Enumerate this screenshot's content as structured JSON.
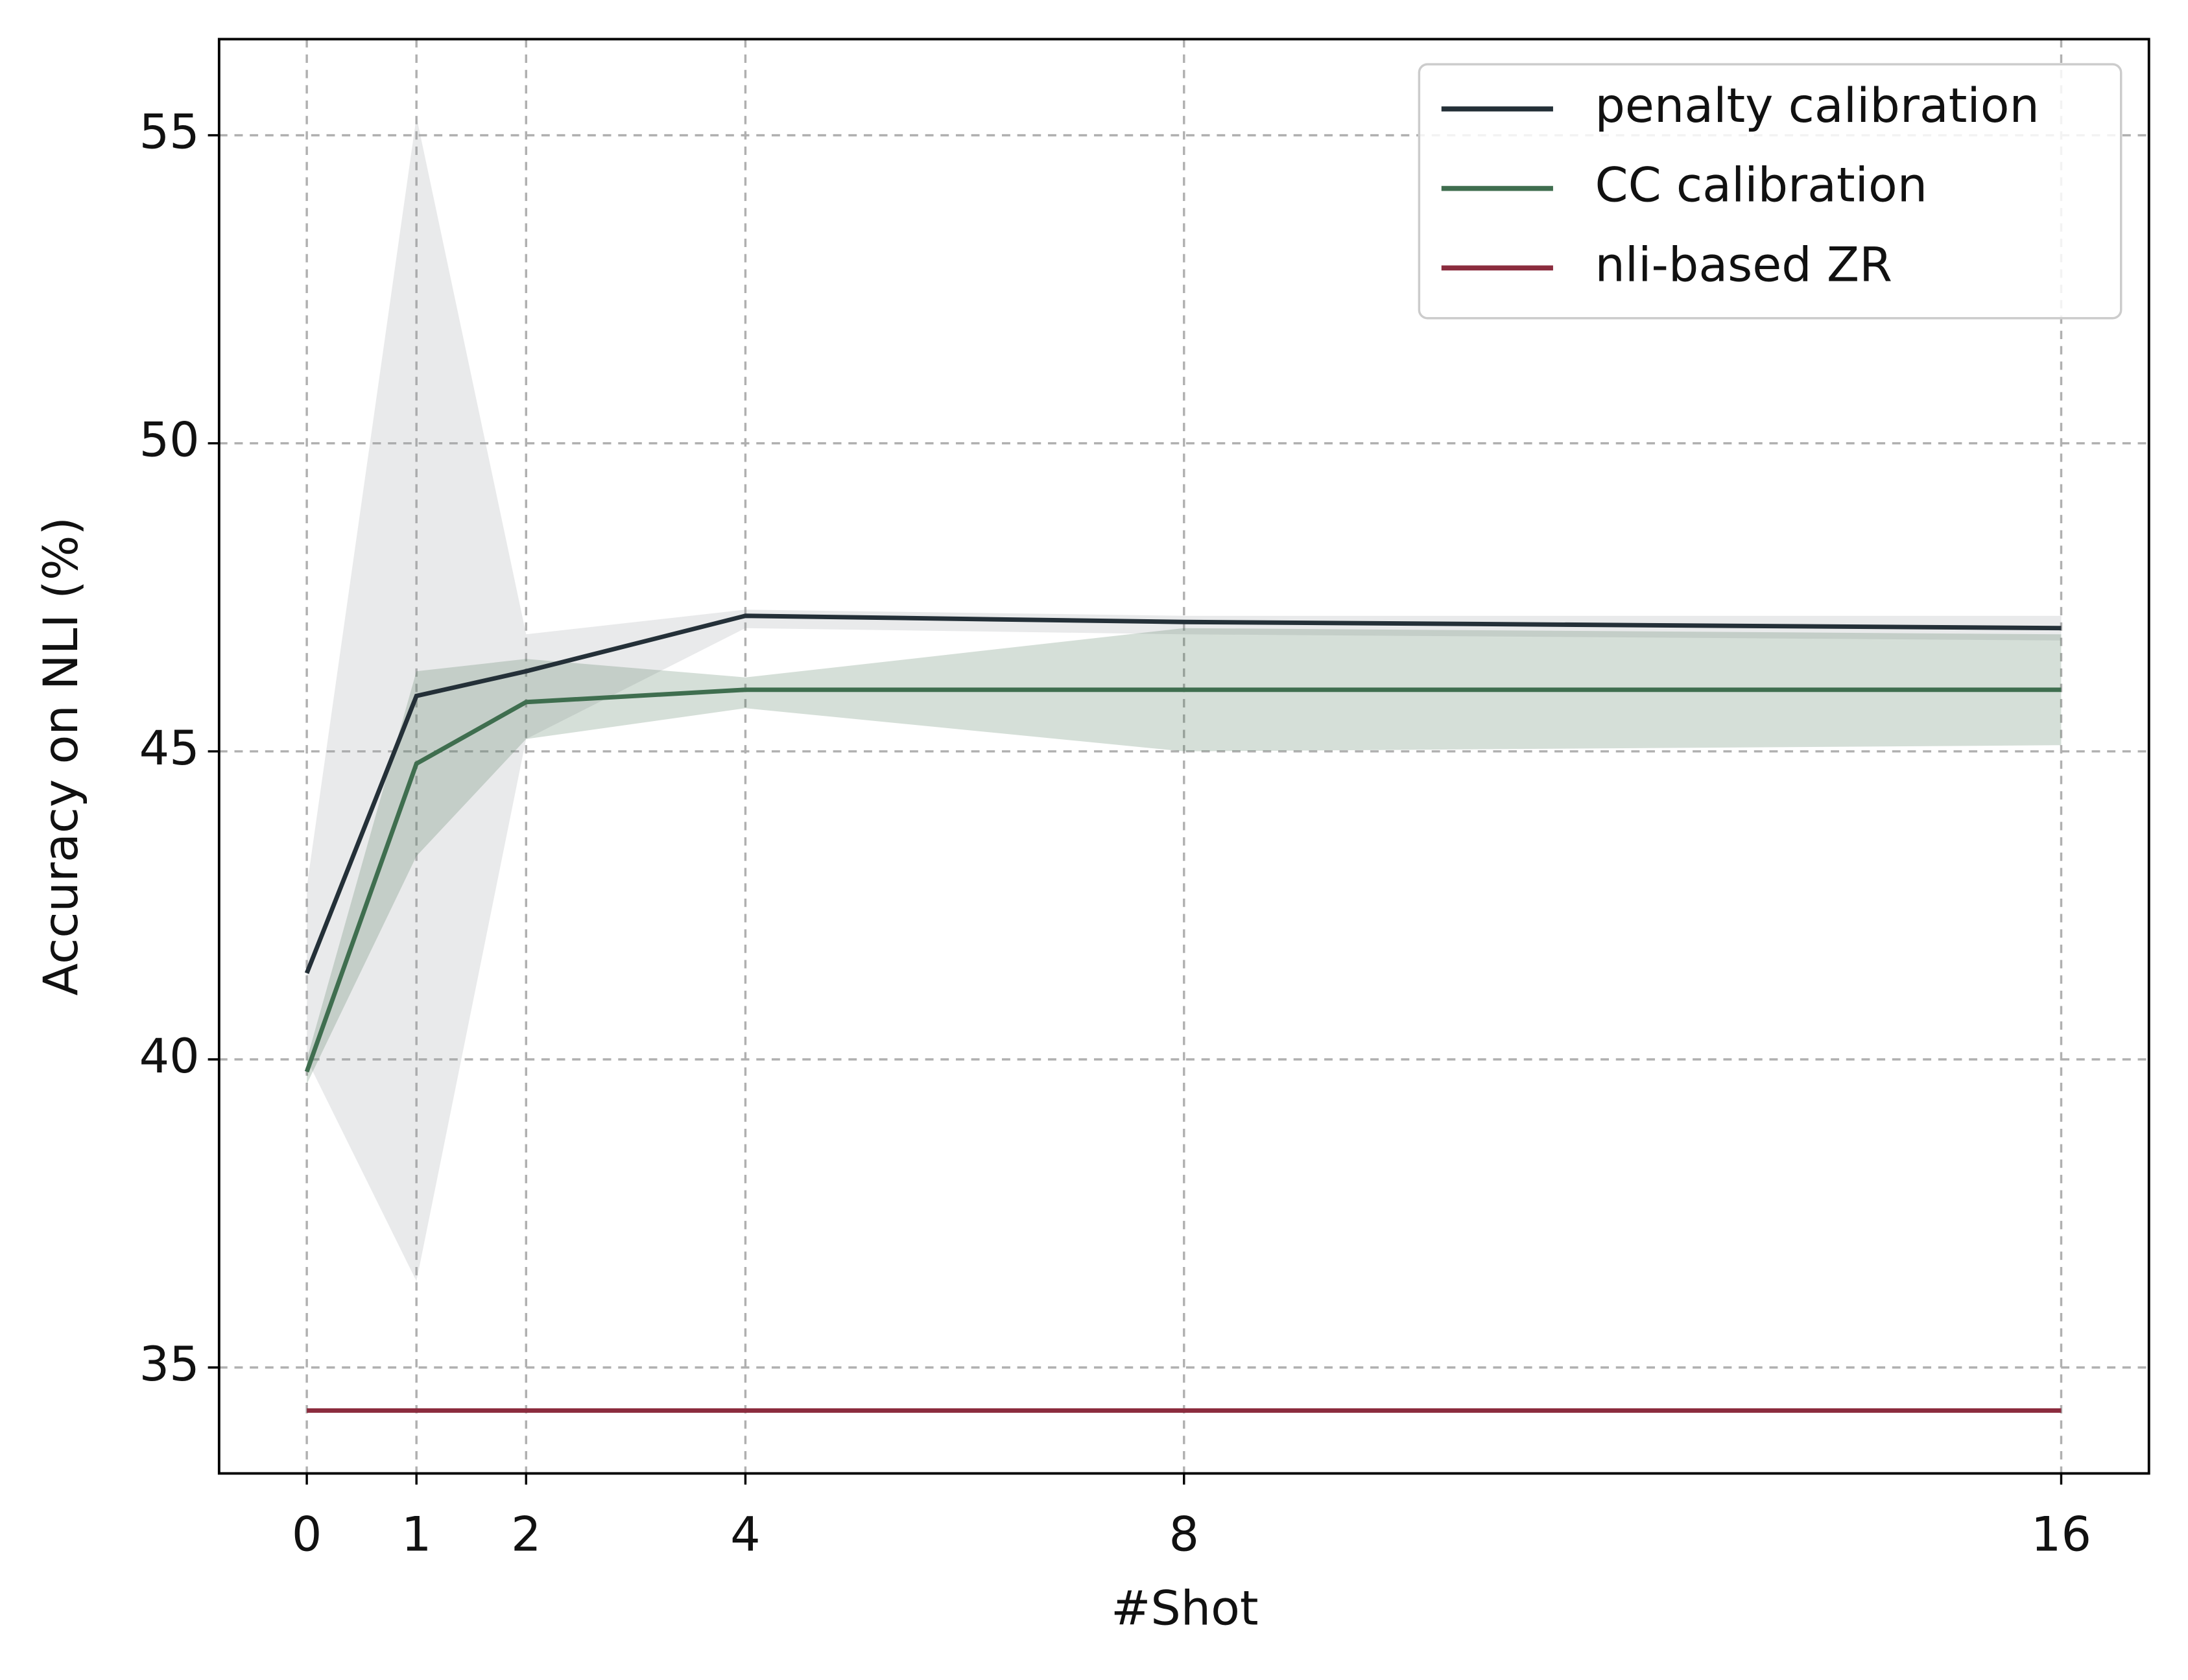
{
  "chart_data": {
    "type": "line",
    "xlabel": "#Shot",
    "ylabel": "Accuracy on NLI (%)",
    "x": [
      0,
      1,
      2,
      4,
      8,
      16
    ],
    "series": [
      {
        "name": "penalty calibration",
        "color": "#243038",
        "values": [
          41.4,
          45.9,
          46.3,
          47.2,
          47.1,
          47.0
        ],
        "lower": [
          40.0,
          36.4,
          45.2,
          47.0,
          46.9,
          46.8
        ],
        "upper": [
          42.8,
          55.3,
          46.9,
          47.3,
          47.2,
          47.2
        ]
      },
      {
        "name": "CC calibration",
        "color": "#3f6e4f",
        "values": [
          39.8,
          44.8,
          45.8,
          46.0,
          46.0,
          46.0
        ],
        "lower": [
          39.6,
          43.3,
          45.2,
          45.7,
          45.0,
          45.1
        ],
        "upper": [
          40.0,
          46.3,
          46.5,
          46.2,
          47.0,
          46.9
        ]
      },
      {
        "name": "nli-based ZR",
        "color": "#8b2c3e",
        "values": [
          34.3,
          34.3,
          34.3,
          34.3,
          34.3,
          34.3
        ]
      }
    ],
    "xlim": [
      -0.8,
      16.8
    ],
    "ylim": [
      33.28,
      56.56
    ],
    "xticks": [
      0,
      1,
      2,
      4,
      8,
      16
    ],
    "yticks": [
      35,
      40,
      45,
      50,
      55
    ],
    "grid": true,
    "legend": "upper right"
  }
}
